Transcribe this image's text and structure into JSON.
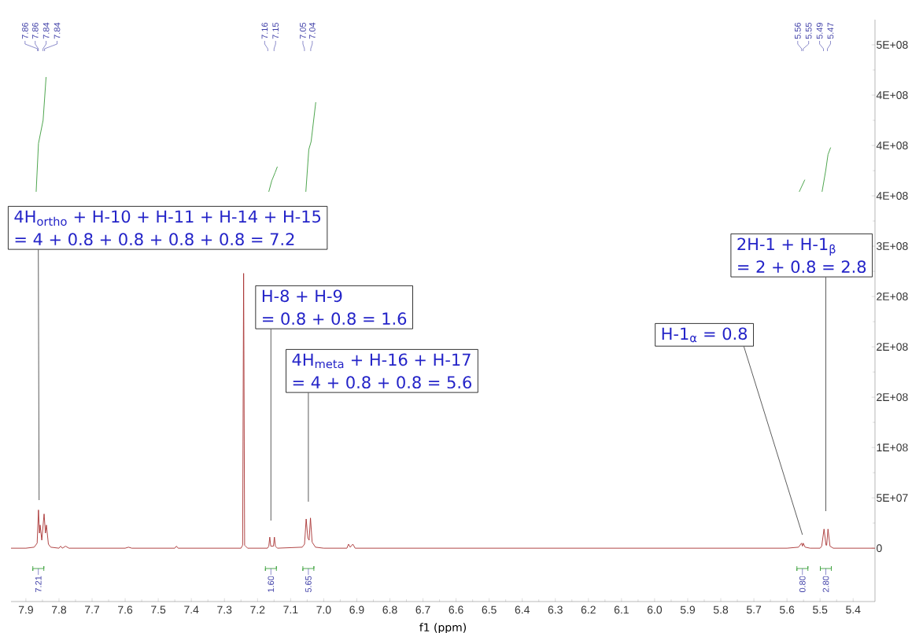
{
  "chart_data": {
    "type": "line",
    "xlabel": "f1 (ppm)",
    "xlim": [
      7.945,
      5.334
    ],
    "ylim": [
      -53000000,
      525000000
    ],
    "xticks": [
      7.9,
      7.8,
      7.7,
      7.6,
      7.5,
      7.4,
      7.3,
      7.2,
      7.1,
      {
        "value": 7,
        "label": "7.0"
      },
      6.9,
      6.8,
      6.7,
      6.6,
      6.5,
      6.4,
      6.3,
      6.2,
      6.1,
      {
        "value": 6,
        "label": "6.0"
      },
      5.9,
      5.8,
      5.7,
      5.6,
      5.5,
      5.4
    ],
    "yticks": [
      0,
      {
        "value": 50000000,
        "label": "5E+07"
      },
      {
        "value": 100000000,
        "label": "1E+08"
      },
      {
        "value": 150000000,
        "label": "2E+08"
      },
      {
        "value": 200000000,
        "label": "2E+08"
      },
      {
        "value": 250000000,
        "label": "2E+08"
      },
      {
        "value": 300000000,
        "label": "3E+08"
      },
      {
        "value": 350000000,
        "label": "4E+08"
      },
      {
        "value": 400000000,
        "label": "4E+08"
      },
      {
        "value": 450000000,
        "label": "4E+08"
      },
      {
        "value": 500000000,
        "label": "5E+08"
      }
    ],
    "series": [
      {
        "color": "#a83232",
        "x": [
          7.945,
          7.9,
          7.875,
          7.866,
          7.862,
          7.859,
          7.857,
          7.852,
          7.845,
          7.841,
          7.838,
          7.832,
          7.825,
          7.8,
          7.795,
          7.79,
          7.78,
          7.77,
          7.6,
          7.59,
          7.58,
          7.45,
          7.445,
          7.44,
          7.3,
          7.25,
          7.245,
          7.242,
          7.239,
          7.23,
          7.17,
          7.166,
          7.163,
          7.16,
          7.152,
          7.149,
          7.146,
          7.14,
          7.065,
          7.058,
          7.053,
          7.048,
          7.044,
          7.04,
          7.035,
          7.025,
          7.0,
          6.93,
          6.925,
          6.92,
          6.912,
          6.905,
          6.7,
          6.5,
          6.0,
          5.6,
          5.565,
          5.556,
          5.553,
          5.551,
          5.545,
          5.53,
          5.5,
          5.495,
          5.488,
          5.482,
          5.48,
          5.476,
          5.47,
          5.46,
          5.334
        ],
        "values": [
          0,
          0,
          1000000,
          5000000,
          38000000,
          15000000,
          23000000,
          8000000,
          34000000,
          15000000,
          23000000,
          4000000,
          1000000,
          0,
          2000000,
          0,
          2000000,
          0,
          0,
          1000000,
          0,
          0,
          2000000,
          0,
          0,
          0,
          3000000,
          273000000,
          3000000,
          0,
          0,
          2000000,
          11000000,
          2000000,
          2000000,
          11000000,
          2000000,
          0,
          1000000,
          4000000,
          29000000,
          10000000,
          8000000,
          30000000,
          6000000,
          1000000,
          0,
          0,
          4000000,
          1000000,
          4000000,
          0,
          0,
          0,
          0,
          0,
          1000000,
          5000000,
          2000000,
          5000000,
          1000000,
          0,
          0,
          2000000,
          19000000,
          3000000,
          3000000,
          19000000,
          2000000,
          0,
          0
        ]
      },
      {
        "color": "#3c9c3c",
        "x": [
          7.869,
          7.862,
          7.848,
          7.839
        ],
        "values": [
          354000000,
          402000000,
          425000000,
          468000000
        ]
      },
      {
        "color": "#3c9c3c",
        "x": [
          7.166,
          7.157,
          7.147,
          7.14
        ],
        "values": [
          354000000,
          365000000,
          373000000,
          379000000
        ]
      },
      {
        "color": "#3c9c3c",
        "x": [
          7.054,
          7.045,
          7.038,
          7.024
        ],
        "values": [
          354000000,
          396000000,
          404000000,
          443000000
        ]
      },
      {
        "color": "#3c9c3c",
        "x": [
          5.563,
          5.546
        ],
        "values": [
          354000000,
          366000000
        ]
      },
      {
        "color": "#3c9c3c",
        "x": [
          5.494,
          5.483,
          5.476,
          5.468
        ],
        "values": [
          354000000,
          375000000,
          391000000,
          398000000
        ]
      }
    ],
    "annotations": [
      "4H$_{ortho}$ + H-10 + H-11 + H-14 + H-15",
      "= 4 + 0.8 + 0.8 + 0.8 + 0.8 = 7.2",
      "H-8 + H-9",
      "= 0.8 + 0.8 = 1.6",
      "4H$_{meta}$ + H-16 + H-17",
      "= 4 + 0.8 + 0.8 = 5.6",
      "H-1$_{α}$ = 0.8",
      "2H-1 + H-1$_{β}$",
      "= 2 + 0.8 = 2.8",
      "7.86",
      "7.86",
      "7.84",
      "7.84",
      "7.16",
      "7.15",
      "7.05",
      "7.04",
      "5.56",
      "5.55",
      "5.49",
      "5.47",
      "7.21",
      "1.60",
      "5.65",
      "0.80",
      "2.80"
    ]
  }
}
